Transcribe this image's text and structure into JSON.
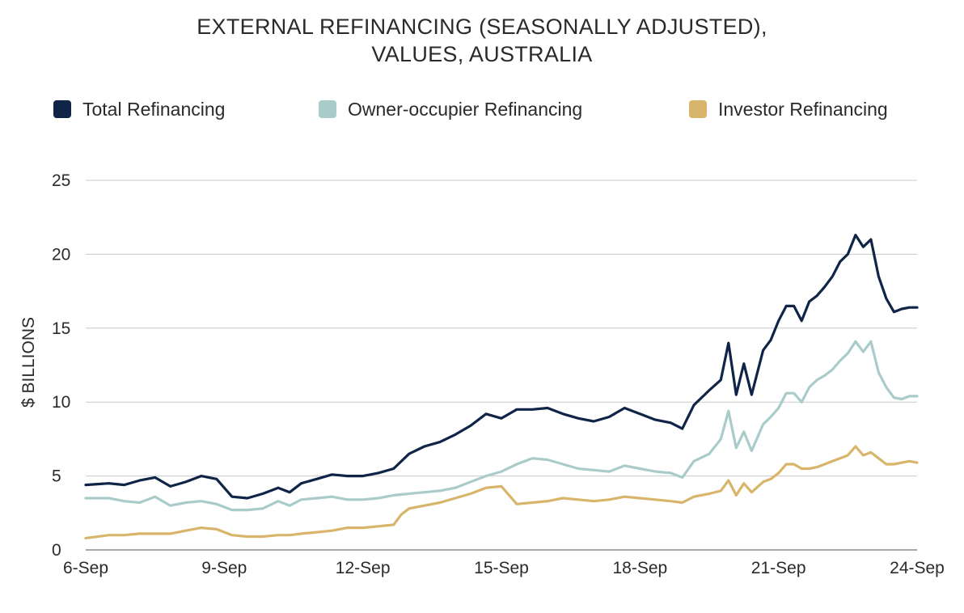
{
  "chart_data": {
    "type": "line",
    "title_line1": "EXTERNAL REFINANCING (SEASONALLY ADJUSTED),",
    "title_line2": "VALUES, AUSTRALIA",
    "xlabel": "",
    "ylabel": "$ BILLIONS",
    "ylim": [
      0,
      25
    ],
    "yticks": [
      0,
      5,
      10,
      15,
      20,
      25
    ],
    "x_tick_labels": [
      "6-Sep",
      "9-Sep",
      "12-Sep",
      "15-Sep",
      "18-Sep",
      "21-Sep",
      "24-Sep"
    ],
    "x_tick_positions": [
      0,
      36,
      72,
      108,
      144,
      180,
      216
    ],
    "xlim": [
      0,
      216
    ],
    "grid": "horizontal",
    "legend_position": "top",
    "colors": {
      "total": "#0f2447",
      "owner": "#a9cccb",
      "investor": "#d8b56b"
    },
    "series": [
      {
        "name": "Total Refinancing",
        "key": "total",
        "points": [
          [
            0,
            4.4
          ],
          [
            6,
            4.5
          ],
          [
            10,
            4.4
          ],
          [
            14,
            4.7
          ],
          [
            18,
            4.9
          ],
          [
            22,
            4.3
          ],
          [
            26,
            4.6
          ],
          [
            30,
            5.0
          ],
          [
            34,
            4.8
          ],
          [
            38,
            3.6
          ],
          [
            42,
            3.5
          ],
          [
            46,
            3.8
          ],
          [
            50,
            4.2
          ],
          [
            53,
            3.9
          ],
          [
            56,
            4.5
          ],
          [
            60,
            4.8
          ],
          [
            64,
            5.1
          ],
          [
            68,
            5.0
          ],
          [
            72,
            5.0
          ],
          [
            76,
            5.2
          ],
          [
            80,
            5.5
          ],
          [
            84,
            6.5
          ],
          [
            88,
            7.0
          ],
          [
            92,
            7.3
          ],
          [
            96,
            7.8
          ],
          [
            100,
            8.4
          ],
          [
            104,
            9.2
          ],
          [
            108,
            8.9
          ],
          [
            112,
            9.5
          ],
          [
            116,
            9.5
          ],
          [
            120,
            9.6
          ],
          [
            124,
            9.2
          ],
          [
            128,
            8.9
          ],
          [
            132,
            8.7
          ],
          [
            136,
            9.0
          ],
          [
            140,
            9.6
          ],
          [
            144,
            9.2
          ],
          [
            148,
            8.8
          ],
          [
            152,
            8.6
          ],
          [
            155,
            8.2
          ],
          [
            158,
            9.8
          ],
          [
            162,
            10.8
          ],
          [
            165,
            11.5
          ],
          [
            167,
            14.0
          ],
          [
            169,
            10.5
          ],
          [
            171,
            12.6
          ],
          [
            173,
            10.5
          ],
          [
            176,
            13.5
          ],
          [
            178,
            14.2
          ],
          [
            180,
            15.5
          ],
          [
            182,
            16.5
          ],
          [
            184,
            16.5
          ],
          [
            186,
            15.5
          ],
          [
            188,
            16.8
          ],
          [
            190,
            17.2
          ],
          [
            192,
            17.8
          ],
          [
            194,
            18.5
          ],
          [
            196,
            19.5
          ],
          [
            198,
            20.0
          ],
          [
            200,
            21.3
          ],
          [
            202,
            20.5
          ],
          [
            204,
            21.0
          ],
          [
            206,
            18.5
          ],
          [
            208,
            17.0
          ],
          [
            210,
            16.1
          ],
          [
            212,
            16.3
          ],
          [
            214,
            16.4
          ],
          [
            216,
            16.4
          ]
        ]
      },
      {
        "name": "Owner-occupier Refinancing",
        "key": "owner",
        "points": [
          [
            0,
            3.5
          ],
          [
            6,
            3.5
          ],
          [
            10,
            3.3
          ],
          [
            14,
            3.2
          ],
          [
            18,
            3.6
          ],
          [
            22,
            3.0
          ],
          [
            26,
            3.2
          ],
          [
            30,
            3.3
          ],
          [
            34,
            3.1
          ],
          [
            38,
            2.7
          ],
          [
            42,
            2.7
          ],
          [
            46,
            2.8
          ],
          [
            50,
            3.3
          ],
          [
            53,
            3.0
          ],
          [
            56,
            3.4
          ],
          [
            60,
            3.5
          ],
          [
            64,
            3.6
          ],
          [
            68,
            3.4
          ],
          [
            72,
            3.4
          ],
          [
            76,
            3.5
          ],
          [
            80,
            3.7
          ],
          [
            84,
            3.8
          ],
          [
            88,
            3.9
          ],
          [
            92,
            4.0
          ],
          [
            96,
            4.2
          ],
          [
            100,
            4.6
          ],
          [
            104,
            5.0
          ],
          [
            108,
            5.3
          ],
          [
            112,
            5.8
          ],
          [
            116,
            6.2
          ],
          [
            120,
            6.1
          ],
          [
            124,
            5.8
          ],
          [
            128,
            5.5
          ],
          [
            132,
            5.4
          ],
          [
            136,
            5.3
          ],
          [
            140,
            5.7
          ],
          [
            144,
            5.5
          ],
          [
            148,
            5.3
          ],
          [
            152,
            5.2
          ],
          [
            155,
            4.9
          ],
          [
            158,
            6.0
          ],
          [
            162,
            6.5
          ],
          [
            165,
            7.5
          ],
          [
            167,
            9.4
          ],
          [
            169,
            6.9
          ],
          [
            171,
            8.0
          ],
          [
            173,
            6.7
          ],
          [
            176,
            8.5
          ],
          [
            178,
            9.0
          ],
          [
            180,
            9.6
          ],
          [
            182,
            10.6
          ],
          [
            184,
            10.6
          ],
          [
            186,
            10.0
          ],
          [
            188,
            11.0
          ],
          [
            190,
            11.5
          ],
          [
            192,
            11.8
          ],
          [
            194,
            12.2
          ],
          [
            196,
            12.8
          ],
          [
            198,
            13.3
          ],
          [
            200,
            14.1
          ],
          [
            202,
            13.4
          ],
          [
            204,
            14.1
          ],
          [
            206,
            12.0
          ],
          [
            208,
            11.0
          ],
          [
            210,
            10.3
          ],
          [
            212,
            10.2
          ],
          [
            214,
            10.4
          ],
          [
            216,
            10.4
          ]
        ]
      },
      {
        "name": "Investor Refinancing",
        "key": "investor",
        "points": [
          [
            0,
            0.8
          ],
          [
            6,
            1.0
          ],
          [
            10,
            1.0
          ],
          [
            14,
            1.1
          ],
          [
            18,
            1.1
          ],
          [
            22,
            1.1
          ],
          [
            26,
            1.3
          ],
          [
            30,
            1.5
          ],
          [
            34,
            1.4
          ],
          [
            38,
            1.0
          ],
          [
            42,
            0.9
          ],
          [
            46,
            0.9
          ],
          [
            50,
            1.0
          ],
          [
            53,
            1.0
          ],
          [
            56,
            1.1
          ],
          [
            60,
            1.2
          ],
          [
            64,
            1.3
          ],
          [
            68,
            1.5
          ],
          [
            72,
            1.5
          ],
          [
            76,
            1.6
          ],
          [
            80,
            1.7
          ],
          [
            82,
            2.4
          ],
          [
            84,
            2.8
          ],
          [
            88,
            3.0
          ],
          [
            92,
            3.2
          ],
          [
            96,
            3.5
          ],
          [
            100,
            3.8
          ],
          [
            104,
            4.2
          ],
          [
            108,
            4.3
          ],
          [
            112,
            3.1
          ],
          [
            116,
            3.2
          ],
          [
            120,
            3.3
          ],
          [
            124,
            3.5
          ],
          [
            128,
            3.4
          ],
          [
            132,
            3.3
          ],
          [
            136,
            3.4
          ],
          [
            140,
            3.6
          ],
          [
            144,
            3.5
          ],
          [
            148,
            3.4
          ],
          [
            152,
            3.3
          ],
          [
            155,
            3.2
          ],
          [
            158,
            3.6
          ],
          [
            162,
            3.8
          ],
          [
            165,
            4.0
          ],
          [
            167,
            4.7
          ],
          [
            169,
            3.7
          ],
          [
            171,
            4.5
          ],
          [
            173,
            3.9
          ],
          [
            176,
            4.6
          ],
          [
            178,
            4.8
          ],
          [
            180,
            5.2
          ],
          [
            182,
            5.8
          ],
          [
            184,
            5.8
          ],
          [
            186,
            5.5
          ],
          [
            188,
            5.5
          ],
          [
            190,
            5.6
          ],
          [
            192,
            5.8
          ],
          [
            194,
            6.0
          ],
          [
            196,
            6.2
          ],
          [
            198,
            6.4
          ],
          [
            200,
            7.0
          ],
          [
            202,
            6.4
          ],
          [
            204,
            6.6
          ],
          [
            206,
            6.2
          ],
          [
            208,
            5.8
          ],
          [
            210,
            5.8
          ],
          [
            212,
            5.9
          ],
          [
            214,
            6.0
          ],
          [
            216,
            5.9
          ]
        ]
      }
    ]
  }
}
